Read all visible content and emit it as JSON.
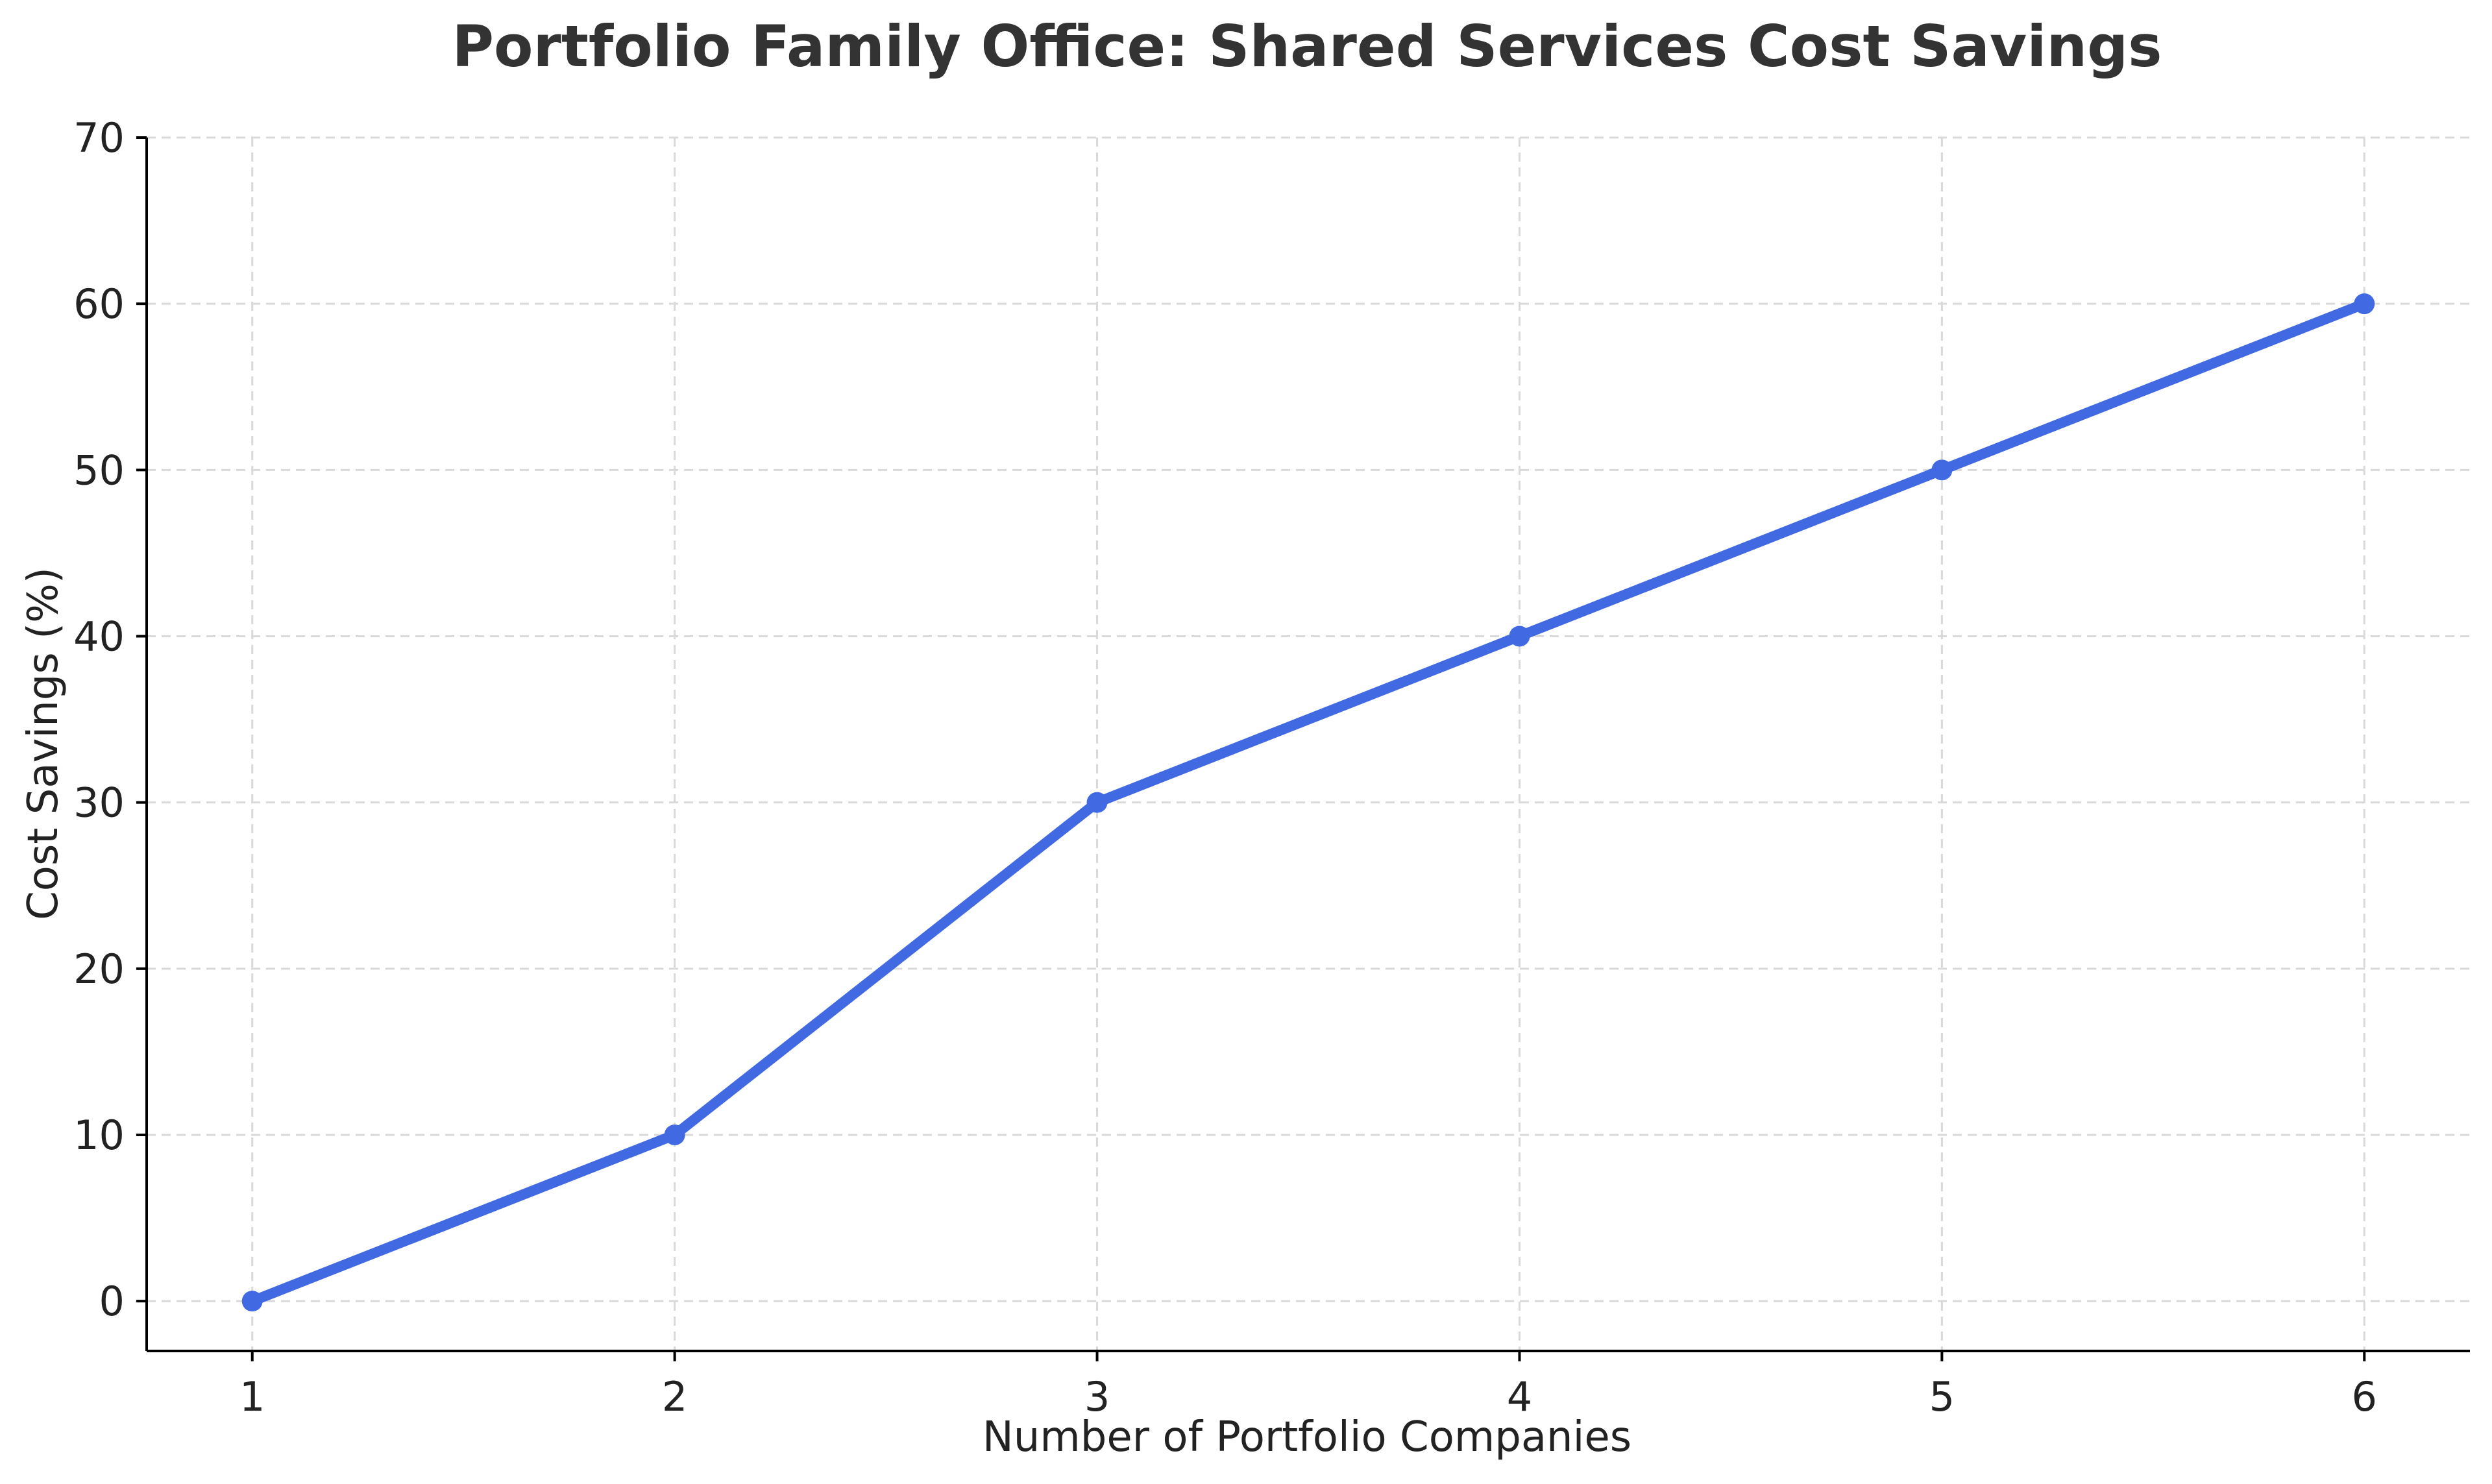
{
  "chart_data": {
    "type": "line",
    "title": "Portfolio Family Office: Shared Services Cost Savings",
    "xlabel": "Number of Portfolio Companies",
    "ylabel": "Cost Savings (%)",
    "x": [
      1,
      2,
      3,
      4,
      5,
      6
    ],
    "series": [
      {
        "values": [
          0,
          10,
          30,
          40,
          50,
          60
        ],
        "color": "#4169E1",
        "marker": "circle"
      }
    ],
    "xlim": [
      0.75,
      6.25
    ],
    "ylim": [
      -3,
      70
    ],
    "xticks": [
      "1",
      "2",
      "3",
      "4",
      "5",
      "6"
    ],
    "yticks": [
      "0",
      "10",
      "20",
      "30",
      "40",
      "50",
      "60",
      "70"
    ],
    "grid": true,
    "legend": "none"
  }
}
